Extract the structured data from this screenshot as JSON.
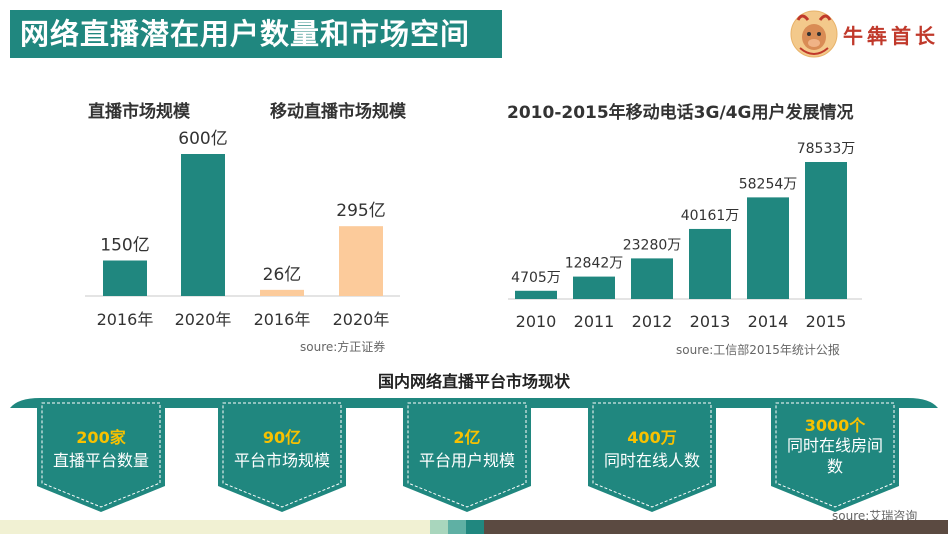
{
  "slide": {
    "title": "网络直播潜在用户数量和市场空间",
    "logo_text": "牛犇首长"
  },
  "chart_data": [
    {
      "type": "bar",
      "title": "直播市场规模",
      "categories": [
        "2016年",
        "2020年"
      ],
      "values": [
        150,
        600
      ],
      "value_labels": [
        "150亿",
        "600亿"
      ],
      "color": "#20877f"
    },
    {
      "type": "bar",
      "title": "移动直播市场规模",
      "categories": [
        "2016年",
        "2020年"
      ],
      "values": [
        26,
        295
      ],
      "value_labels": [
        "26亿",
        "295亿"
      ],
      "color": "#fccb9b",
      "source": "soure:方正证券"
    },
    {
      "type": "bar",
      "title": "2010-2015年移动电话3G/4G用户发展情况",
      "categories": [
        "2010",
        "2011",
        "2012",
        "2013",
        "2014",
        "2015"
      ],
      "values": [
        4705,
        12842,
        23280,
        40161,
        58254,
        78533
      ],
      "value_labels": [
        "4705万",
        "12842万",
        "23280万",
        "40161万",
        "58254万",
        "78533万"
      ],
      "color": "#20877f",
      "source": "soure:工信部2015年统计公报"
    }
  ],
  "platform_section": {
    "title": "国内网络直播平台市场现状",
    "items": [
      {
        "value": "200家",
        "label": "直播平台数量"
      },
      {
        "value": "90亿",
        "label": "平台市场规模"
      },
      {
        "value": "2亿",
        "label": "平台用户规模"
      },
      {
        "value": "400万",
        "label": "同时在线人数"
      },
      {
        "value": "3000个",
        "label": "同时在线房间数"
      }
    ],
    "source": "soure:艾瑞咨询"
  },
  "colors": {
    "teal": "#20877f",
    "peach": "#fccb9b",
    "gold": "#f8c100"
  }
}
